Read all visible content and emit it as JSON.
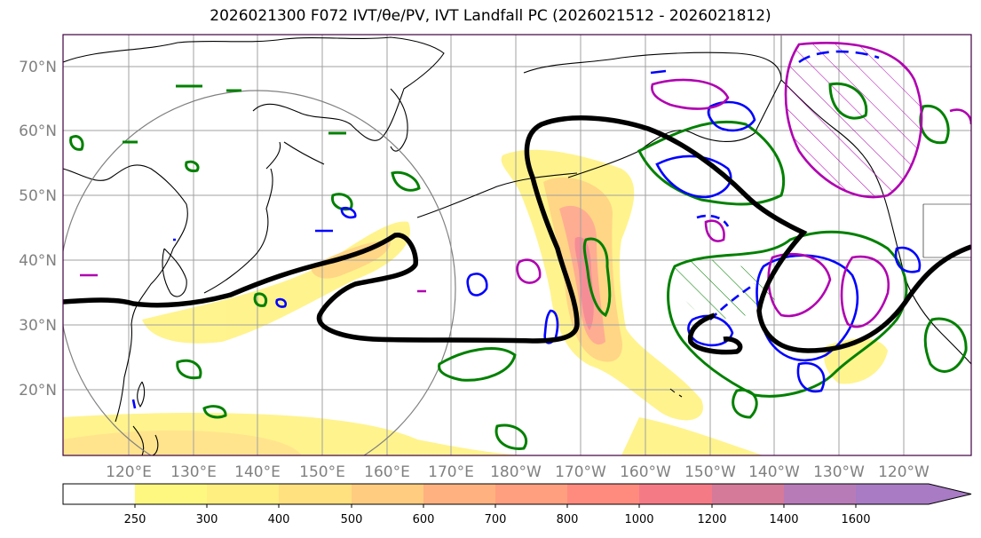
{
  "title": "2026021300 F072 IVT/θe/PV, IVT Landfall PC (2026021512 - 2026021812)",
  "lat_labels": [
    "70°N",
    "60°N",
    "50°N",
    "40°N",
    "30°N",
    "20°N"
  ],
  "lon_labels": [
    "120°E",
    "130°E",
    "140°E",
    "150°E",
    "160°E",
    "170°E",
    "180°W",
    "170°W",
    "160°W",
    "150°W",
    "140°W",
    "130°W",
    "120°W"
  ],
  "colorbar": {
    "ticks": [
      "250",
      "300",
      "400",
      "500",
      "600",
      "700",
      "800",
      "1000",
      "1200",
      "1400",
      "1600"
    ],
    "colors": [
      "#ffffff",
      "#fff880",
      "#ffee80",
      "#ffe180",
      "#ffcc80",
      "#ffb27f",
      "#ff9f7f",
      "#ff8b7f",
      "#f47a86",
      "#d57a99",
      "#b77bb8",
      "#a87bc4"
    ]
  },
  "colors": {
    "ivt_fill": "#ffd870",
    "theta_contour": "#000000",
    "pv_green": "#008000",
    "pv_blue": "#0000ff",
    "pv_magenta": "#b000b0",
    "coast": "#000000",
    "grid": "#a0a0a0",
    "frame": "#400040"
  }
}
